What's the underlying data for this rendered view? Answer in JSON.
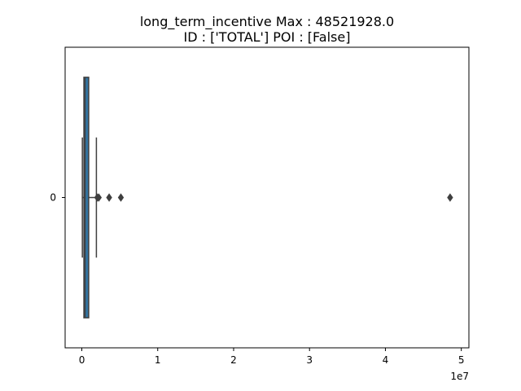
{
  "chart_data": {
    "type": "box",
    "orientation": "horizontal",
    "title_line1": "long_term_incentive  Max : 48521928.0",
    "title_line2": "ID : ['TOTAL']  POI : [False]",
    "category": "0",
    "xlim": [
      -2200000,
      51000000
    ],
    "xticks": [
      0,
      10000000,
      20000000,
      30000000,
      40000000,
      50000000
    ],
    "xtick_labels": [
      "0",
      "1",
      "2",
      "3",
      "4",
      "5"
    ],
    "x_offset_label": "1e7",
    "box": {
      "whisker_low": 69223,
      "q1": 275000,
      "median": 422158,
      "q3": 903000,
      "whisker_high": 1920000
    },
    "fliers": [
      2035380,
      2234774,
      3600000,
      5145434,
      48521928
    ],
    "colors": {
      "box_fill": "#3274a1",
      "edge": "#3f3f3f",
      "flier": "#3f3f3f"
    }
  }
}
